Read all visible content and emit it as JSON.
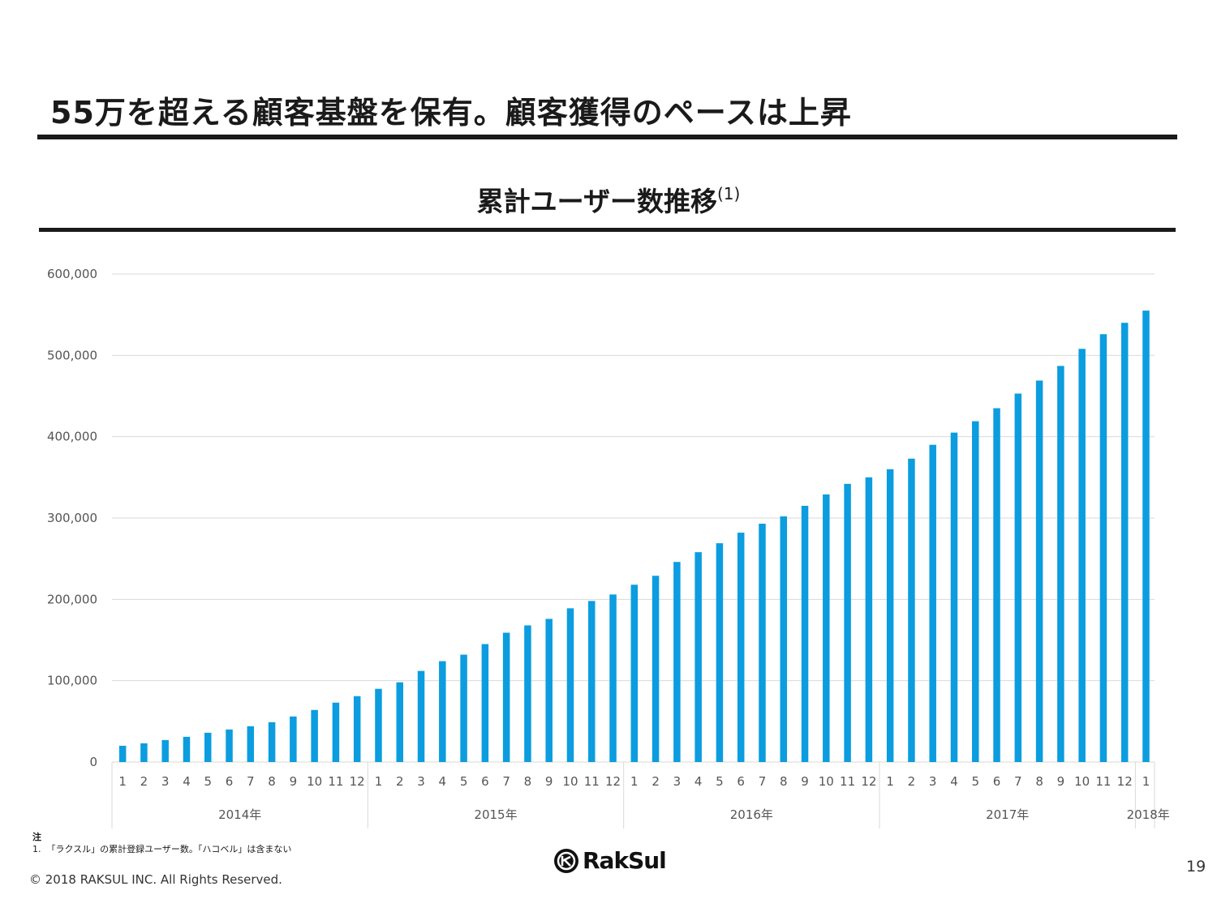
{
  "slide": {
    "title": "55万を超える顧客基盤を保有。顧客獲得のペースは上昇",
    "chart_heading": "累計ユーザー数推移",
    "chart_heading_sup": "(1)",
    "note_head": "注",
    "note_body": "1.  「ラクスル」の累計登録ユーザー数。「ハコベル」は含まない",
    "copyright": "© 2018 RAKSUL INC. All Rights Reserved.",
    "page_number": "19",
    "logo_text": "RakSul"
  },
  "colors": {
    "bar": "#0b9ddf",
    "text": "#1a1a1a",
    "grid": "#d9d9d9"
  },
  "chart_data": {
    "type": "bar",
    "title": "累計ユーザー数推移",
    "ylim": [
      0,
      600000
    ],
    "yticks": [
      "0",
      "100,000",
      "200,000",
      "300,000",
      "400,000",
      "500,000",
      "600,000"
    ],
    "grid": true,
    "categories": [
      "1",
      "2",
      "3",
      "4",
      "5",
      "6",
      "7",
      "8",
      "9",
      "10",
      "11",
      "12",
      "1",
      "2",
      "3",
      "4",
      "5",
      "6",
      "7",
      "8",
      "9",
      "10",
      "11",
      "12",
      "1",
      "2",
      "3",
      "4",
      "5",
      "6",
      "7",
      "8",
      "9",
      "10",
      "11",
      "12",
      "1",
      "2",
      "3",
      "4",
      "5",
      "6",
      "7",
      "8",
      "9",
      "10",
      "11",
      "12",
      "1"
    ],
    "groups": [
      {
        "label": "2014年",
        "count": 12
      },
      {
        "label": "2015年",
        "count": 12
      },
      {
        "label": "2016年",
        "count": 12
      },
      {
        "label": "2017年",
        "count": 12
      },
      {
        "label": "2018年",
        "count": 1
      }
    ],
    "values": [
      20000,
      23000,
      27000,
      31000,
      36000,
      40000,
      44000,
      49000,
      56000,
      64000,
      73000,
      81000,
      90000,
      98000,
      112000,
      124000,
      132000,
      145000,
      159000,
      168000,
      176000,
      189000,
      198000,
      206000,
      218000,
      229000,
      246000,
      258000,
      269000,
      282000,
      293000,
      302000,
      315000,
      329000,
      342000,
      350000,
      360000,
      373000,
      390000,
      405000,
      419000,
      435000,
      453000,
      469000,
      487000,
      508000,
      526000,
      540000,
      555000
    ]
  }
}
